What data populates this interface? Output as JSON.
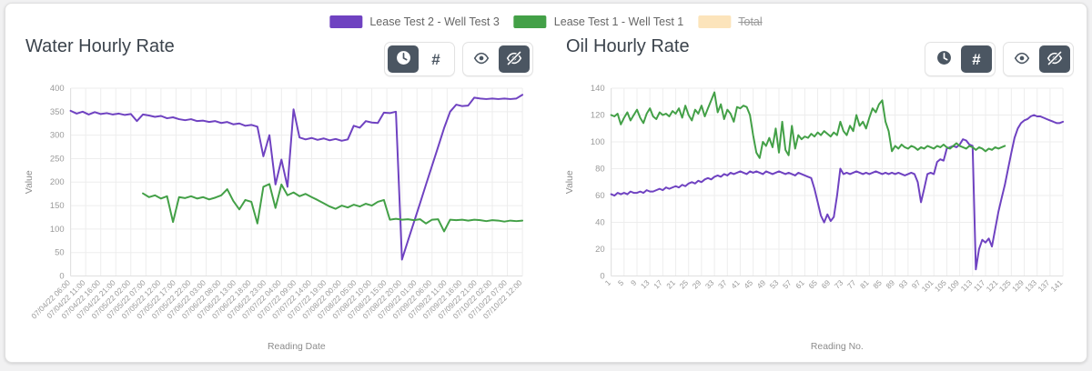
{
  "page": {
    "background": "#f1f1f2",
    "card_background": "#ffffff"
  },
  "icons": {
    "hash": "#",
    "clock": "clock-icon",
    "eye": "eye-icon",
    "eye_slash": "eye-slash-icon"
  },
  "legend": {
    "items": [
      {
        "label": "Lease Test 2 - Well Test 3",
        "color": "#6f42c1",
        "hidden": false
      },
      {
        "label": "Lease Test 1 - Well Test 1",
        "color": "#43a047",
        "hidden": false
      },
      {
        "label": "Total",
        "color": "#fce4bb",
        "hidden": true
      }
    ]
  },
  "chart_data": [
    {
      "type": "line",
      "title": "Water Hourly Rate",
      "xlabel": "Reading Date",
      "ylabel": "Value",
      "xlim": [
        0,
        150
      ],
      "ylim": [
        0,
        400
      ],
      "y_ticks": [
        0,
        50,
        100,
        150,
        200,
        250,
        300,
        350,
        400
      ],
      "x_tick_start": 0,
      "x_tick_step": 5,
      "x_tick_labels": [
        "07/04/22 06:00",
        "07/04/22 11:00",
        "07/04/22 16:00",
        "07/04/22 21:00",
        "07/05/22 02:00",
        "07/05/22 07:00",
        "07/05/22 12:00",
        "07/05/22 17:00",
        "07/05/22 22:00",
        "07/06/22 03:00",
        "07/06/22 08:00",
        "07/06/22 13:00",
        "07/06/22 18:00",
        "07/06/22 23:00",
        "07/07/22 04:00",
        "07/07/22 09:00",
        "07/07/22 14:00",
        "07/07/22 19:00",
        "07/08/22 00:00",
        "07/08/22 05:00",
        "07/08/22 10:00",
        "07/08/22 15:00",
        "07/08/22 20:00",
        "07/09/22 01:00",
        "07/09/22 06:00",
        "07/09/22 11:00",
        "07/09/22 16:00",
        "07/09/22 21:00",
        "07/10/22 02:00",
        "07/10/22 07:00",
        "07/10/22 12:00"
      ],
      "toolbar": {
        "clock_active": true,
        "hash_active": false,
        "eye_active": false,
        "eye_slash_active": true
      },
      "series": [
        {
          "name": "Lease Test 2 - Well Test 3",
          "color": "#6f42c1",
          "x_start": 0,
          "x_step": 2,
          "values": [
            352,
            346,
            350,
            344,
            349,
            345,
            347,
            344,
            346,
            343,
            345,
            330,
            344,
            342,
            339,
            341,
            336,
            338,
            334,
            332,
            334,
            330,
            331,
            328,
            330,
            326,
            328,
            323,
            325,
            320,
            322,
            318,
            255,
            300,
            195,
            248,
            190,
            355,
            295,
            291,
            294,
            290,
            293,
            289,
            292,
            288,
            291,
            320,
            316,
            330,
            327,
            326,
            348,
            347,
            350,
            35,
            75,
            115,
            155,
            195,
            235,
            275,
            315,
            350,
            365,
            362,
            363,
            380,
            378,
            377,
            378,
            377,
            378,
            377,
            378,
            386
          ]
        },
        {
          "name": "Lease Test 1 - Well Test 1",
          "color": "#43a047",
          "x_start": 24,
          "x_step": 2,
          "values": [
            176,
            168,
            172,
            165,
            170,
            115,
            168,
            166,
            170,
            165,
            168,
            163,
            167,
            172,
            185,
            160,
            142,
            162,
            158,
            112,
            190,
            196,
            145,
            195,
            172,
            178,
            170,
            175,
            168,
            162,
            155,
            148,
            143,
            150,
            146,
            152,
            148,
            154,
            150,
            158,
            162,
            120,
            122,
            120,
            121,
            119,
            121,
            112,
            120,
            121,
            95,
            120,
            119,
            120,
            118,
            120,
            119,
            117,
            119,
            118,
            116,
            118,
            117,
            118
          ]
        }
      ]
    },
    {
      "type": "line",
      "title": "Oil Hourly Rate",
      "xlabel": "Reading No.",
      "ylabel": "Value",
      "xlim": [
        1,
        141
      ],
      "ylim": [
        0,
        140
      ],
      "y_ticks": [
        0,
        20,
        40,
        60,
        80,
        100,
        120,
        140
      ],
      "x_tick_start": 1,
      "x_tick_step": 4,
      "x_tick_labels": [
        "1",
        "5",
        "9",
        "13",
        "17",
        "21",
        "25",
        "29",
        "33",
        "37",
        "41",
        "45",
        "49",
        "53",
        "57",
        "61",
        "65",
        "69",
        "73",
        "77",
        "81",
        "85",
        "89",
        "93",
        "97",
        "101",
        "105",
        "109",
        "113",
        "117",
        "121",
        "125",
        "129",
        "133",
        "137",
        "141"
      ],
      "toolbar": {
        "clock_active": false,
        "hash_active": true,
        "eye_active": false,
        "eye_slash_active": true
      },
      "series": [
        {
          "name": "Lease Test 2 - Well Test 3",
          "color": "#6f42c1",
          "x_start": 1,
          "x_step": 1,
          "values": [
            61,
            60,
            62,
            61,
            62,
            61,
            63,
            62,
            62,
            63,
            62,
            64,
            63,
            63,
            64,
            65,
            64,
            66,
            65,
            66,
            67,
            66,
            68,
            67,
            69,
            70,
            69,
            71,
            70,
            72,
            73,
            72,
            74,
            75,
            74,
            76,
            75,
            77,
            76,
            77,
            78,
            77,
            76,
            78,
            77,
            78,
            77,
            76,
            78,
            77,
            76,
            77,
            78,
            77,
            76,
            77,
            76,
            75,
            77,
            76,
            75,
            74,
            73,
            65,
            55,
            45,
            40,
            46,
            41,
            44,
            60,
            80,
            76,
            77,
            76,
            77,
            78,
            77,
            76,
            77,
            76,
            77,
            78,
            77,
            76,
            77,
            76,
            77,
            76,
            77,
            76,
            75,
            76,
            77,
            76,
            70,
            55,
            65,
            76,
            77,
            76,
            85,
            87,
            86,
            95,
            96,
            97,
            96,
            98,
            102,
            101,
            98,
            97,
            5,
            20,
            27,
            25,
            28,
            22,
            35,
            48,
            58,
            68,
            80,
            92,
            103,
            110,
            114,
            116,
            117,
            119,
            120,
            119,
            119,
            118,
            117,
            116,
            115,
            114,
            114,
            115
          ]
        },
        {
          "name": "Lease Test 1 - Well Test 1",
          "color": "#43a047",
          "x_start": 1,
          "x_step": 1,
          "values": [
            120,
            119,
            121,
            113,
            118,
            122,
            116,
            120,
            124,
            118,
            114,
            121,
            125,
            119,
            117,
            122,
            120,
            121,
            119,
            123,
            121,
            125,
            118,
            127,
            120,
            116,
            124,
            121,
            127,
            119,
            125,
            131,
            137,
            122,
            128,
            117,
            124,
            121,
            115,
            126,
            125,
            127,
            126,
            120,
            105,
            92,
            88,
            100,
            97,
            103,
            96,
            110,
            92,
            115,
            94,
            90,
            112,
            95,
            105,
            102,
            104,
            103,
            106,
            104,
            107,
            105,
            108,
            106,
            104,
            107,
            105,
            115,
            108,
            105,
            112,
            108,
            120,
            112,
            115,
            110,
            118,
            125,
            122,
            128,
            131,
            115,
            108,
            93,
            97,
            95,
            98,
            96,
            95,
            97,
            96,
            94,
            96,
            95,
            97,
            96,
            95,
            97,
            96,
            98,
            96,
            95,
            97,
            99,
            97,
            96,
            95,
            97,
            96,
            94,
            96,
            95,
            93,
            95,
            94,
            96,
            95,
            96,
            97
          ]
        }
      ]
    }
  ]
}
